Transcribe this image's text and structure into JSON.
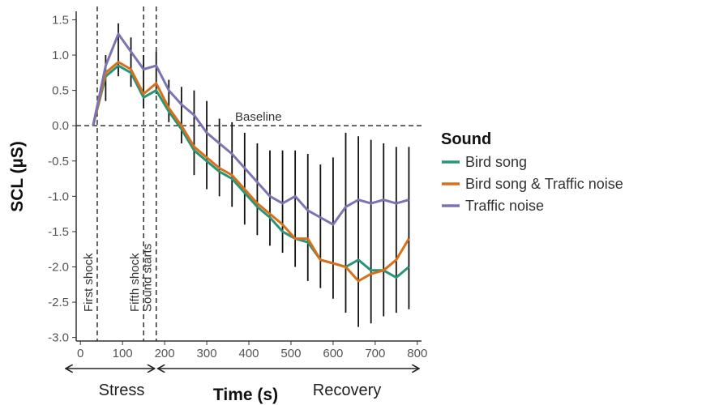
{
  "chart_data": {
    "type": "line",
    "title": "",
    "xlabel": "Time (s)",
    "ylabel": "SCL (µS)",
    "xlim": [
      -10,
      810
    ],
    "ylim": [
      -3.05,
      1.62
    ],
    "xticks": [
      0,
      100,
      200,
      300,
      400,
      500,
      600,
      700,
      800
    ],
    "yticks": [
      1.5,
      1.0,
      0.5,
      0.0,
      -0.5,
      -1.0,
      -1.5,
      -2.0,
      -2.5,
      -3.0
    ],
    "xtick_labels": [
      "0",
      "100",
      "200",
      "300",
      "400",
      "500",
      "600",
      "700",
      "800"
    ],
    "ytick_labels": [
      "1.5",
      "1.0",
      "0.5",
      "0.0",
      "-0.5",
      "-1.0",
      "-1.5",
      "-2.0",
      "-2.5",
      "-3.0"
    ],
    "x": [
      30,
      60,
      90,
      120,
      150,
      180,
      210,
      240,
      270,
      300,
      330,
      360,
      390,
      420,
      450,
      480,
      510,
      540,
      570,
      600,
      630,
      660,
      690,
      720,
      750,
      780
    ],
    "series": [
      {
        "name": "Bird song",
        "color": "#2a9478",
        "values": [
          0.0,
          0.7,
          0.85,
          0.75,
          0.4,
          0.5,
          0.2,
          -0.05,
          -0.35,
          -0.5,
          -0.65,
          -0.75,
          -0.95,
          -1.15,
          -1.3,
          -1.5,
          -1.6,
          -1.65,
          -1.9,
          -1.95,
          -2.0,
          -1.9,
          -2.05,
          -2.05,
          -2.15,
          -2.0
        ]
      },
      {
        "name": "Bird song & Traffic noise",
        "color": "#d8701a",
        "values": [
          0.0,
          0.75,
          0.9,
          0.8,
          0.45,
          0.6,
          0.25,
          0.0,
          -0.3,
          -0.45,
          -0.6,
          -0.7,
          -0.9,
          -1.1,
          -1.25,
          -1.4,
          -1.6,
          -1.6,
          -1.9,
          -1.95,
          -2.0,
          -2.2,
          -2.1,
          -2.05,
          -1.9,
          -1.6
        ]
      },
      {
        "name": "Traffic noise",
        "color": "#7b74b2",
        "values": [
          0.0,
          0.85,
          1.3,
          1.05,
          0.8,
          0.85,
          0.5,
          0.3,
          0.15,
          -0.1,
          -0.25,
          -0.4,
          -0.6,
          -0.8,
          -1.0,
          -1.1,
          -1.0,
          -1.2,
          -1.3,
          -1.4,
          -1.15,
          -1.05,
          -1.1,
          -1.05,
          -1.1,
          -1.05
        ]
      }
    ],
    "error_bars": {
      "x": [
        60,
        90,
        120,
        150,
        180,
        210,
        240,
        270,
        300,
        330,
        360,
        390,
        420,
        450,
        480,
        510,
        540,
        570,
        600,
        630,
        660,
        690,
        720,
        750,
        780
      ],
      "low": [
        0.35,
        0.7,
        0.55,
        0.25,
        0.45,
        0.05,
        -0.25,
        -0.7,
        -0.9,
        -1.0,
        -1.15,
        -1.4,
        -1.55,
        -1.7,
        -1.8,
        -2.0,
        -2.2,
        -2.3,
        -2.45,
        -2.65,
        -2.85,
        -2.8,
        -2.7,
        -2.65,
        -2.6
      ],
      "high": [
        1.0,
        1.45,
        1.25,
        1.0,
        1.05,
        0.65,
        0.55,
        0.5,
        0.35,
        0.1,
        0.05,
        -0.1,
        -0.25,
        -0.35,
        -0.35,
        -0.35,
        -0.4,
        -0.55,
        -0.45,
        -0.1,
        -0.15,
        -0.2,
        -0.25,
        -0.3,
        -0.3
      ]
    },
    "baseline": {
      "y": 0.0,
      "label": "Baseline"
    },
    "vlines": [
      {
        "x": 40,
        "label": "First shock"
      },
      {
        "x": 150,
        "label": "Fifth shock"
      },
      {
        "x": 180,
        "label": "Sound starts"
      }
    ],
    "legend": {
      "title": "Sound",
      "position": "right"
    },
    "phases": [
      {
        "label": "Stress",
        "from": -10,
        "to": 180
      },
      {
        "label": "Recovery",
        "from": 180,
        "to": 810
      }
    ],
    "grid": false
  }
}
